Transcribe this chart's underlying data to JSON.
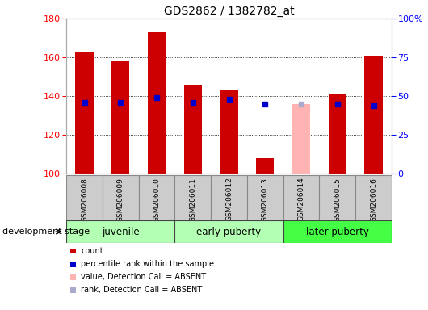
{
  "title": "GDS2862 / 1382782_at",
  "samples": [
    "GSM206008",
    "GSM206009",
    "GSM206010",
    "GSM206011",
    "GSM206012",
    "GSM206013",
    "GSM206014",
    "GSM206015",
    "GSM206016"
  ],
  "count_values": [
    163,
    158,
    173,
    146,
    143,
    108,
    null,
    141,
    161
  ],
  "count_absent_values": [
    null,
    null,
    null,
    null,
    null,
    null,
    136,
    null,
    null
  ],
  "percentile_values": [
    46,
    46,
    49,
    46,
    48,
    45,
    null,
    45,
    44
  ],
  "percentile_absent_values": [
    null,
    null,
    null,
    null,
    null,
    null,
    45,
    null,
    null
  ],
  "count_color": "#cc0000",
  "count_absent_color": "#ffb3b3",
  "percentile_color": "#0000cc",
  "percentile_absent_color": "#aaaacc",
  "ylim_left": [
    100,
    180
  ],
  "ylim_right": [
    0,
    100
  ],
  "yticks_left": [
    100,
    120,
    140,
    160,
    180
  ],
  "yticks_right": [
    0,
    25,
    50,
    75,
    100
  ],
  "yticklabels_right": [
    "0",
    "25",
    "50",
    "75",
    "100%"
  ],
  "group_colors": [
    "#b3ffb3",
    "#b3ffb3",
    "#44ff44"
  ],
  "group_labels": [
    "juvenile",
    "early puberty",
    "later puberty"
  ],
  "group_starts": [
    0,
    3,
    6
  ],
  "group_ends": [
    3,
    6,
    9
  ],
  "legend_items": [
    {
      "label": "count",
      "color": "#cc0000"
    },
    {
      "label": "percentile rank within the sample",
      "color": "#0000cc"
    },
    {
      "label": "value, Detection Call = ABSENT",
      "color": "#ffb3b3"
    },
    {
      "label": "rank, Detection Call = ABSENT",
      "color": "#aaaacc"
    }
  ],
  "development_stage_label": "development stage",
  "bar_width": 0.5,
  "percentile_marker_size": 5,
  "sample_box_color": "#cccccc",
  "fig_bg_color": "#ffffff"
}
